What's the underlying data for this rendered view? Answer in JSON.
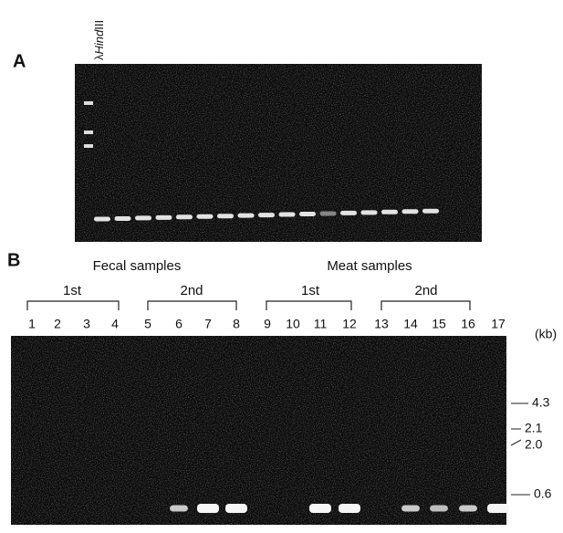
{
  "panel_a": {
    "label": "A",
    "marker": {
      "prefix": "λ",
      "italic": "Hind",
      "suffix": "III"
    }
  },
  "panel_b": {
    "label": "B",
    "groups": [
      {
        "title": "Fecal samples",
        "subgroups": [
          "1st",
          "2nd"
        ]
      },
      {
        "title": "Meat samples",
        "subgroups": [
          "1st",
          "2nd"
        ]
      }
    ],
    "lanes": [
      "1",
      "2",
      "3",
      "4",
      "5",
      "6",
      "7",
      "8",
      "9",
      "10",
      "11",
      "12",
      "13",
      "14",
      "15",
      "16",
      "17"
    ],
    "size_unit": "(kb)",
    "size_markers": [
      "4.3",
      "2.1",
      "2.0",
      "0.6"
    ]
  }
}
